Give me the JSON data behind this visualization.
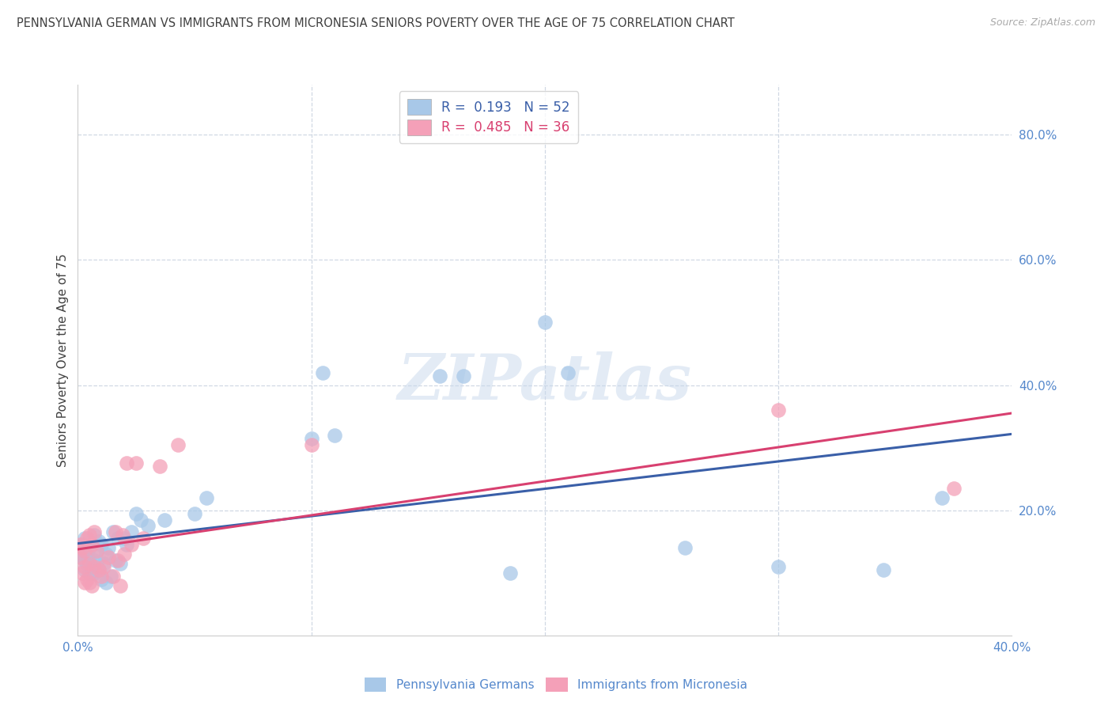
{
  "title": "PENNSYLVANIA GERMAN VS IMMIGRANTS FROM MICRONESIA SENIORS POVERTY OVER THE AGE OF 75 CORRELATION CHART",
  "source": "Source: ZipAtlas.com",
  "ylabel": "Seniors Poverty Over the Age of 75",
  "xlim": [
    0.0,
    0.4
  ],
  "ylim": [
    0.0,
    0.88
  ],
  "right_yticks": [
    0.2,
    0.4,
    0.6,
    0.8
  ],
  "right_yticklabels": [
    "20.0%",
    "40.0%",
    "60.0%",
    "80.0%"
  ],
  "color_blue": "#a8c8e8",
  "color_pink": "#f4a0b8",
  "line_blue": "#3a5fa8",
  "line_pink": "#d84070",
  "R_blue": 0.193,
  "N_blue": 52,
  "R_pink": 0.485,
  "N_pink": 36,
  "pg_x": [
    0.001,
    0.002,
    0.002,
    0.003,
    0.003,
    0.003,
    0.004,
    0.004,
    0.005,
    0.005,
    0.005,
    0.006,
    0.006,
    0.007,
    0.007,
    0.007,
    0.008,
    0.008,
    0.009,
    0.009,
    0.01,
    0.01,
    0.011,
    0.012,
    0.012,
    0.013,
    0.014,
    0.015,
    0.016,
    0.017,
    0.018,
    0.02,
    0.021,
    0.023,
    0.025,
    0.027,
    0.03,
    0.037,
    0.05,
    0.055,
    0.1,
    0.105,
    0.11,
    0.155,
    0.165,
    0.185,
    0.2,
    0.21,
    0.26,
    0.3,
    0.345,
    0.37
  ],
  "pg_y": [
    0.13,
    0.125,
    0.145,
    0.105,
    0.12,
    0.155,
    0.115,
    0.13,
    0.1,
    0.12,
    0.14,
    0.1,
    0.145,
    0.1,
    0.12,
    0.16,
    0.115,
    0.135,
    0.105,
    0.15,
    0.09,
    0.145,
    0.115,
    0.085,
    0.13,
    0.14,
    0.095,
    0.165,
    0.12,
    0.155,
    0.115,
    0.155,
    0.145,
    0.165,
    0.195,
    0.185,
    0.175,
    0.185,
    0.195,
    0.22,
    0.315,
    0.42,
    0.32,
    0.415,
    0.415,
    0.1,
    0.5,
    0.42,
    0.14,
    0.11,
    0.105,
    0.22
  ],
  "im_x": [
    0.001,
    0.001,
    0.002,
    0.002,
    0.003,
    0.003,
    0.003,
    0.004,
    0.004,
    0.005,
    0.005,
    0.005,
    0.006,
    0.006,
    0.007,
    0.007,
    0.008,
    0.009,
    0.01,
    0.011,
    0.013,
    0.015,
    0.016,
    0.017,
    0.018,
    0.019,
    0.02,
    0.021,
    0.023,
    0.025,
    0.028,
    0.035,
    0.043,
    0.1,
    0.3,
    0.375
  ],
  "im_y": [
    0.125,
    0.145,
    0.1,
    0.14,
    0.085,
    0.11,
    0.135,
    0.09,
    0.155,
    0.085,
    0.115,
    0.16,
    0.08,
    0.145,
    0.11,
    0.165,
    0.135,
    0.105,
    0.095,
    0.11,
    0.125,
    0.095,
    0.165,
    0.12,
    0.08,
    0.16,
    0.13,
    0.275,
    0.145,
    0.275,
    0.155,
    0.27,
    0.305,
    0.305,
    0.36,
    0.235
  ],
  "grid_color": "#d0d8e4",
  "bg_color": "#ffffff",
  "title_color": "#404040",
  "axis_color": "#5588cc",
  "tick_color": "#5588cc",
  "source_color": "#aaaaaa"
}
